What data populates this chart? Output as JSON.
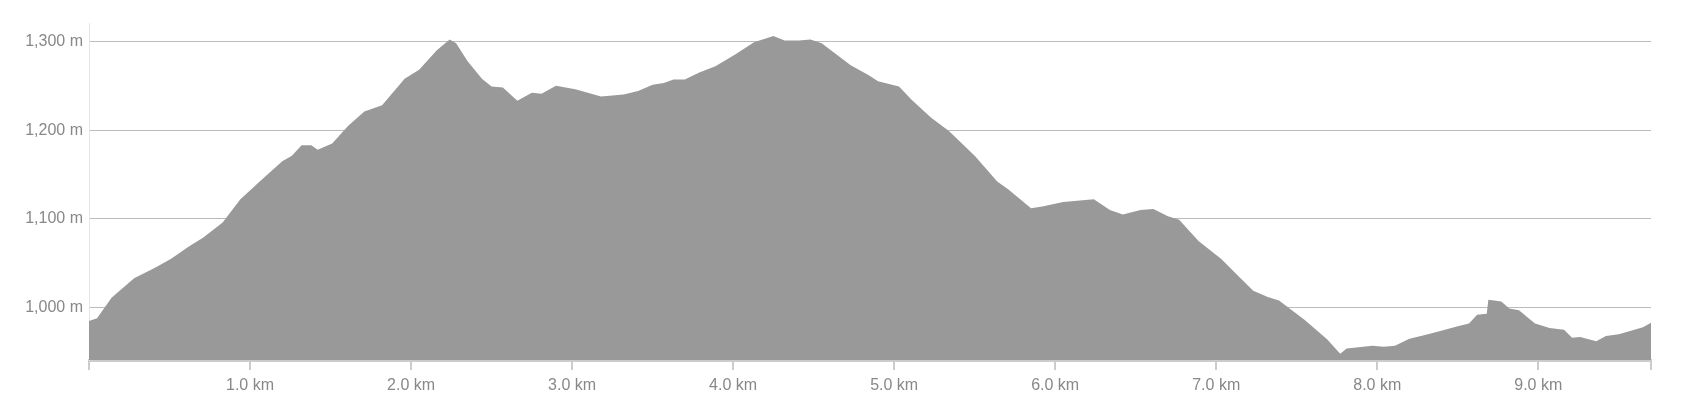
{
  "chart_data": {
    "type": "area",
    "marker": "none",
    "grid": "y",
    "xlim": [
      0,
      9.7
    ],
    "ylim": [
      941,
      1320
    ],
    "xticks": [
      {
        "value": 0,
        "label": null
      },
      {
        "value": 1,
        "label": "1.0 km"
      },
      {
        "value": 2,
        "label": "2.0 km"
      },
      {
        "value": 3,
        "label": "3.0 km"
      },
      {
        "value": 4,
        "label": "4.0 km"
      },
      {
        "value": 5,
        "label": "5.0 km"
      },
      {
        "value": 6,
        "label": "6.0 km"
      },
      {
        "value": 7,
        "label": "7.0 km"
      },
      {
        "value": 8,
        "label": "8.0 km"
      },
      {
        "value": 9,
        "label": "9.0 km"
      },
      {
        "value": 9.7,
        "label": null
      }
    ],
    "yticks": [
      {
        "value": 1000,
        "label": "1,000 m"
      },
      {
        "value": 1100,
        "label": "1,100 m"
      },
      {
        "value": 1200,
        "label": "1,200 m"
      },
      {
        "value": 1300,
        "label": "1,300 m"
      }
    ],
    "series": [
      {
        "color": "#999999",
        "x": [
          0,
          0.05,
          0.14,
          0.28,
          0.41,
          0.51,
          0.62,
          0.71,
          0.83,
          0.94,
          1.06,
          1.2,
          1.26,
          1.32,
          1.38,
          1.42,
          1.51,
          1.61,
          1.71,
          1.82,
          1.96,
          2.05,
          2.16,
          2.24,
          2.28,
          2.35,
          2.44,
          2.5,
          2.57,
          2.66,
          2.75,
          2.81,
          2.9,
          3.02,
          3.18,
          3.32,
          3.41,
          3.5,
          3.57,
          3.63,
          3.7,
          3.79,
          3.89,
          4.01,
          4.13,
          4.25,
          4.32,
          4.41,
          4.48,
          4.55,
          4.73,
          4.84,
          4.9,
          5.03,
          5.11,
          5.23,
          5.34,
          5.5,
          5.64,
          5.71,
          5.85,
          5.92,
          6.05,
          6.24,
          6.34,
          6.42,
          6.53,
          6.61,
          6.7,
          6.77,
          6.89,
          7.03,
          7.14,
          7.23,
          7.32,
          7.39,
          7.55,
          7.69,
          7.77,
          7.81,
          7.97,
          8.04,
          8.11,
          8.2,
          8.29,
          8.38,
          8.5,
          8.57,
          8.62,
          8.68,
          8.69,
          8.77,
          8.82,
          8.88,
          8.98,
          9.07,
          9.16,
          9.21,
          9.26,
          9.36,
          9.42,
          9.5,
          9.56,
          9.65,
          9.7
        ],
        "values": [
          985,
          988,
          1011,
          1033,
          1045,
          1055,
          1069,
          1079,
          1096,
          1122,
          1142,
          1165,
          1171,
          1183,
          1183,
          1178,
          1185,
          1205,
          1221,
          1228,
          1258,
          1268,
          1290,
          1302,
          1298,
          1278,
          1258,
          1249,
          1248,
          1233,
          1242,
          1241,
          1250,
          1246,
          1238,
          1240,
          1244,
          1251,
          1253,
          1257,
          1257,
          1265,
          1272,
          1285,
          1299,
          1306,
          1301,
          1301,
          1302,
          1298,
          1273,
          1262,
          1255,
          1249,
          1234,
          1214,
          1199,
          1171,
          1142,
          1133,
          1112,
          1114,
          1119,
          1122,
          1110,
          1105,
          1110,
          1111,
          1103,
          1099,
          1075,
          1055,
          1035,
          1019,
          1012,
          1008,
          986,
          964,
          948,
          954,
          957,
          956,
          957,
          965,
          969,
          973,
          979,
          982,
          992,
          993,
          1009,
          1007,
          999,
          997,
          982,
          977,
          975,
          966,
          967,
          962,
          968,
          970,
          973,
          978,
          983
        ]
      }
    ]
  }
}
